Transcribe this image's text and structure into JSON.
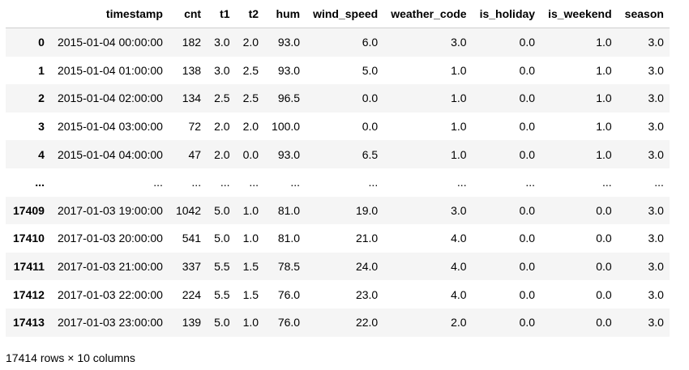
{
  "table": {
    "columns": [
      "timestamp",
      "cnt",
      "t1",
      "t2",
      "hum",
      "wind_speed",
      "weather_code",
      "is_holiday",
      "is_weekend",
      "season"
    ],
    "rows": [
      {
        "index": "0",
        "cells": [
          "2015-01-04 00:00:00",
          "182",
          "3.0",
          "2.0",
          "93.0",
          "6.0",
          "3.0",
          "0.0",
          "1.0",
          "3.0"
        ]
      },
      {
        "index": "1",
        "cells": [
          "2015-01-04 01:00:00",
          "138",
          "3.0",
          "2.5",
          "93.0",
          "5.0",
          "1.0",
          "0.0",
          "1.0",
          "3.0"
        ]
      },
      {
        "index": "2",
        "cells": [
          "2015-01-04 02:00:00",
          "134",
          "2.5",
          "2.5",
          "96.5",
          "0.0",
          "1.0",
          "0.0",
          "1.0",
          "3.0"
        ]
      },
      {
        "index": "3",
        "cells": [
          "2015-01-04 03:00:00",
          "72",
          "2.0",
          "2.0",
          "100.0",
          "0.0",
          "1.0",
          "0.0",
          "1.0",
          "3.0"
        ]
      },
      {
        "index": "4",
        "cells": [
          "2015-01-04 04:00:00",
          "47",
          "2.0",
          "0.0",
          "93.0",
          "6.5",
          "1.0",
          "0.0",
          "1.0",
          "3.0"
        ]
      },
      {
        "index": "...",
        "cells": [
          "...",
          "...",
          "...",
          "...",
          "...",
          "...",
          "...",
          "...",
          "...",
          "..."
        ]
      },
      {
        "index": "17409",
        "cells": [
          "2017-01-03 19:00:00",
          "1042",
          "5.0",
          "1.0",
          "81.0",
          "19.0",
          "3.0",
          "0.0",
          "0.0",
          "3.0"
        ]
      },
      {
        "index": "17410",
        "cells": [
          "2017-01-03 20:00:00",
          "541",
          "5.0",
          "1.0",
          "81.0",
          "21.0",
          "4.0",
          "0.0",
          "0.0",
          "3.0"
        ]
      },
      {
        "index": "17411",
        "cells": [
          "2017-01-03 21:00:00",
          "337",
          "5.5",
          "1.5",
          "78.5",
          "24.0",
          "4.0",
          "0.0",
          "0.0",
          "3.0"
        ]
      },
      {
        "index": "17412",
        "cells": [
          "2017-01-03 22:00:00",
          "224",
          "5.5",
          "1.5",
          "76.0",
          "23.0",
          "4.0",
          "0.0",
          "0.0",
          "3.0"
        ]
      },
      {
        "index": "17413",
        "cells": [
          "2017-01-03 23:00:00",
          "139",
          "5.0",
          "1.0",
          "76.0",
          "22.0",
          "2.0",
          "0.0",
          "0.0",
          "3.0"
        ]
      }
    ]
  },
  "summary": "17414 rows × 10 columns",
  "colors": {
    "row_stripe": "#f5f5f5",
    "header_border": "#cfcfcf"
  }
}
